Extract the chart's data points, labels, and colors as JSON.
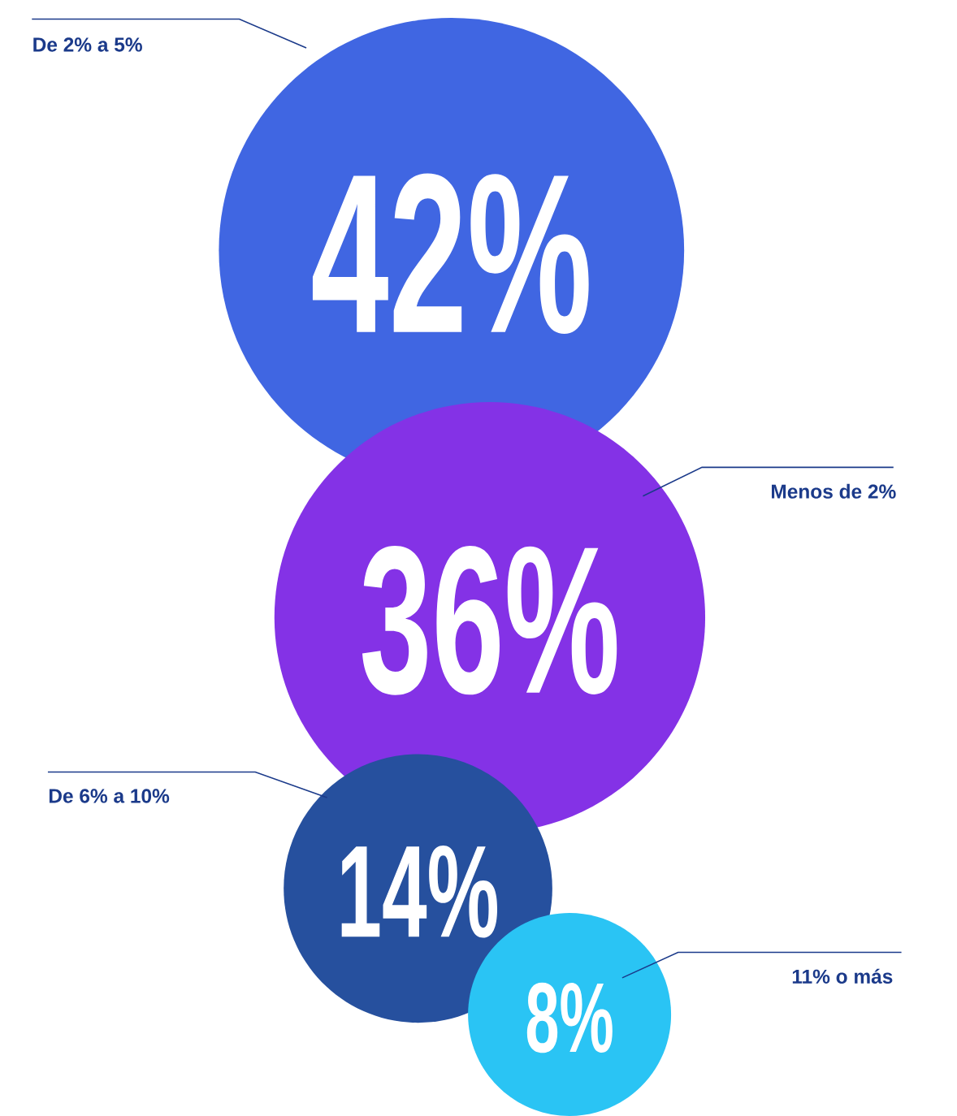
{
  "chart_data": {
    "type": "other",
    "categories": [
      "De 2% a 5%",
      "Menos de 2%",
      "De 6% a 10%",
      "11% o más"
    ],
    "values": [
      42,
      36,
      14,
      8
    ],
    "value_labels": [
      "42%",
      "36%",
      "14%",
      "8%"
    ],
    "colors": [
      "#4066e2",
      "#8432e6",
      "#26509e",
      "#2ac4f4"
    ]
  }
}
